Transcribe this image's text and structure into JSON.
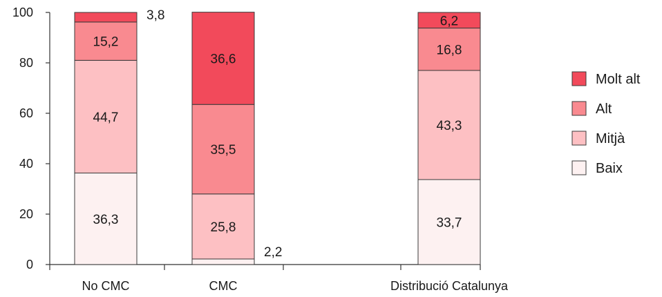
{
  "chart_data": {
    "type": "bar",
    "stacked": true,
    "categories": [
      "No CMC",
      "CMC",
      "Distribució Catalunya"
    ],
    "series": [
      {
        "name": "Baix",
        "color": "#fdf1f1",
        "values": [
          36.3,
          2.2,
          33.7
        ],
        "labels": [
          "36,3",
          "2,2",
          "33,7"
        ]
      },
      {
        "name": "Mitjà",
        "color": "#fdc0c3",
        "values": [
          44.7,
          25.8,
          43.3
        ],
        "labels": [
          "44,7",
          "25,8",
          "43,3"
        ]
      },
      {
        "name": "Alt",
        "color": "#f98a90",
        "values": [
          15.2,
          35.5,
          16.8
        ],
        "labels": [
          "15,2",
          "35,5",
          "16,8"
        ]
      },
      {
        "name": "Molt alt",
        "color": "#f24a5b",
        "values": [
          3.8,
          36.6,
          6.2
        ],
        "labels": [
          "3,8",
          "36,6",
          "6,2"
        ]
      }
    ],
    "yticks": [
      "0",
      "20",
      "40",
      "60",
      "80",
      "100"
    ],
    "ylim": [
      0,
      100
    ],
    "legend": "right",
    "grid": false
  }
}
